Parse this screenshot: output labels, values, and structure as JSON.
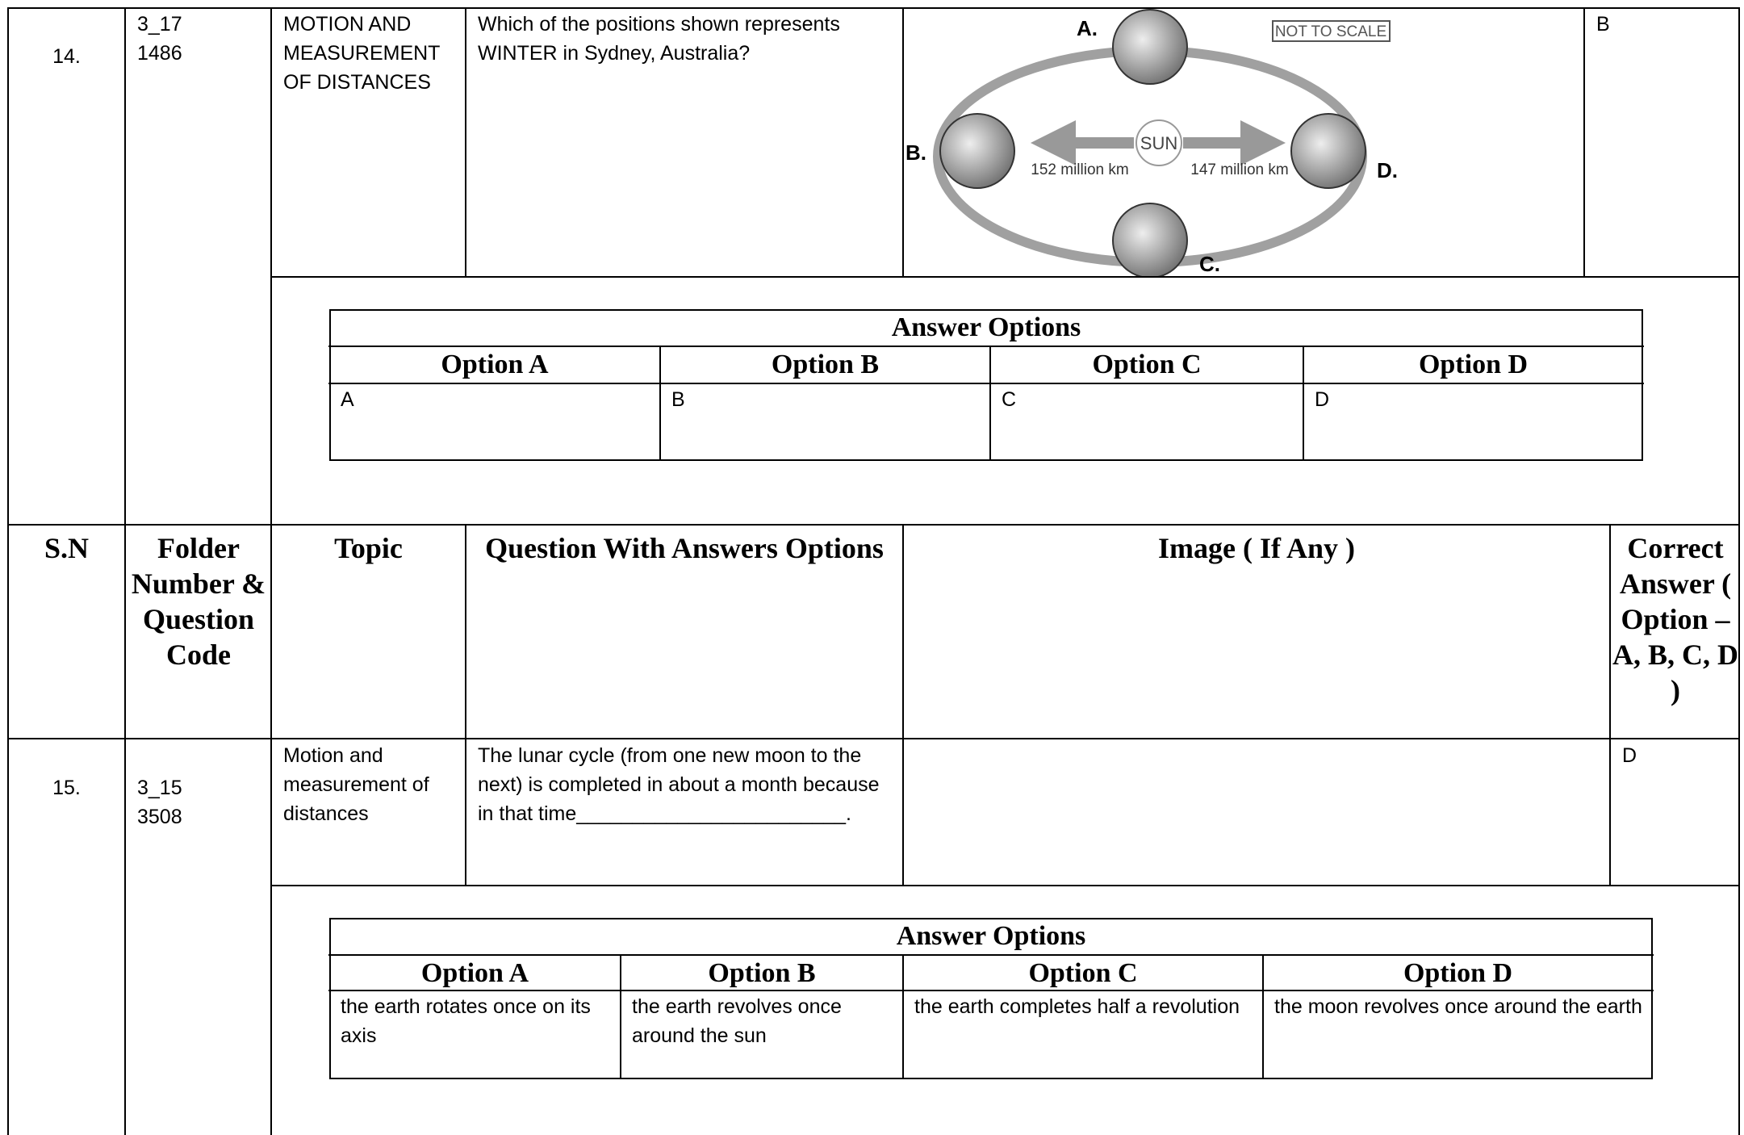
{
  "header": {
    "sn": "S.N",
    "folder": "Folder Number & Question Code",
    "topic": "Topic",
    "question": "Question With Answers Options",
    "image": "Image ( If Any )",
    "correct": "Correct Answer ( Option – A, B, C, D )"
  },
  "questions": [
    {
      "sn": "14.",
      "folder_number": "3_17",
      "question_code": "1486",
      "topic": "MOTION AND MEASUREMENT OF DISTANCES",
      "question": "Which of the positions shown represents WINTER in Sydney, Australia?",
      "image": {
        "positions": [
          "A.",
          "B.",
          "C.",
          "D."
        ],
        "note": "NOT TO SCALE",
        "center": "SUN",
        "left_distance": "152 million km",
        "right_distance": "147 million km"
      },
      "correct_answer": "B",
      "answer_options": {
        "title": "Answer Options",
        "headers": [
          "Option A",
          "Option B",
          "Option C",
          "Option D"
        ],
        "values": [
          "A",
          "B",
          "C",
          "D"
        ]
      }
    },
    {
      "sn": "15.",
      "folder_number": "3_15",
      "question_code": "3508",
      "topic": "Motion and measurement of distances",
      "question": "The lunar cycle (from one new moon to the next) is completed in about a month because in that time________________________.",
      "correct_answer": "D",
      "answer_options": {
        "title": "Answer Options",
        "headers": [
          "Option A",
          "Option B",
          "Option C",
          "Option D"
        ],
        "values": [
          "the earth rotates once on its axis",
          "the earth revolves once around the sun",
          "the earth completes half a revolution",
          "the moon revolves once around the earth"
        ]
      }
    }
  ]
}
